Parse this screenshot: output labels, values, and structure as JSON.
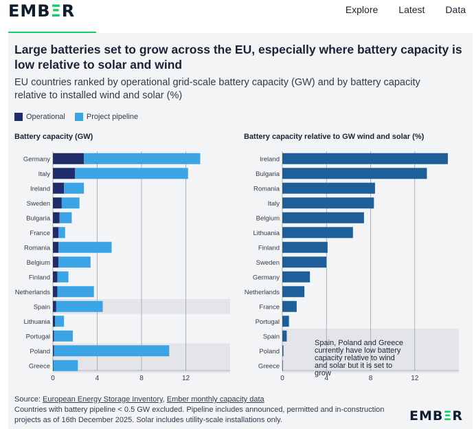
{
  "brand": {
    "logo": "EMBER"
  },
  "nav": [
    "Explore",
    "Latest",
    "Data"
  ],
  "title": "Large batteries set to grow across the EU, especially where battery capacity is low relative to solar and wind",
  "subtitle": "EU countries ranked by operational grid-scale battery capacity (GW) and by battery capacity relative to installed wind and solar (%)",
  "legend": [
    {
      "label": "Operational",
      "color": "#1f2d6b"
    },
    {
      "label": "Project pipeline",
      "color": "#3aa4e4"
    }
  ],
  "chart_data": [
    {
      "type": "bar",
      "orientation": "horizontal",
      "stacked": true,
      "title": "Battery capacity (GW)",
      "categories": [
        "Germany",
        "Italy",
        "Ireland",
        "Sweden",
        "Bulgaria",
        "France",
        "Romania",
        "Belgium",
        "Finland",
        "Netherlands",
        "Spain",
        "Lithuania",
        "Portugal",
        "Poland",
        "Greece"
      ],
      "series": [
        {
          "name": "Operational",
          "color": "#1f2d6b",
          "values": [
            2.8,
            2.0,
            1.0,
            0.8,
            0.6,
            0.5,
            0.5,
            0.5,
            0.4,
            0.4,
            0.3,
            0.2,
            0.1,
            0.1,
            0.05
          ]
        },
        {
          "name": "Project pipeline",
          "color": "#3aa4e4",
          "values": [
            10.5,
            10.2,
            1.8,
            1.6,
            1.1,
            0.6,
            4.8,
            2.9,
            1.0,
            3.3,
            4.2,
            0.8,
            1.7,
            10.4,
            2.2
          ]
        }
      ],
      "highlighted": [
        "Spain",
        "Poland",
        "Greece"
      ],
      "xlim": [
        0,
        16
      ],
      "xticks": [
        0,
        4,
        8,
        12
      ]
    },
    {
      "type": "bar",
      "orientation": "horizontal",
      "title": "Battery capacity relative to GW wind and solar (%)",
      "categories": [
        "Ireland",
        "Bulgaria",
        "Romania",
        "Italy",
        "Belgium",
        "Lithuania",
        "Finland",
        "Sweden",
        "Germany",
        "Netherlands",
        "France",
        "Portugal",
        "Spain",
        "Poland",
        "Greece"
      ],
      "series": [
        {
          "name": "Battery capacity relative to GW wind and solar",
          "color": "#1f5f99",
          "values": [
            15.0,
            13.1,
            8.4,
            8.3,
            7.4,
            6.4,
            4.1,
            4.0,
            2.5,
            2.0,
            1.3,
            0.6,
            0.4,
            0.1,
            0.05
          ]
        }
      ],
      "highlighted": [
        "Spain",
        "Poland",
        "Greece"
      ],
      "xlim": [
        0,
        16
      ],
      "xticks": [
        0,
        4,
        8,
        12
      ],
      "annotation": "Spain, Poland and Greece currently have low battery capacity relative to wind and solar but it is set to grow"
    }
  ],
  "footer": {
    "source_label": "Source:",
    "source_link_1": "European Energy Storage Inventory",
    "source_sep": ",",
    "source_link_2": "Ember monthly capacity data",
    "notes": "Countries with battery pipeline < 0.5 GW excluded. Pipeline includes announced, permitted and in-construction projects as of 16th December 2025. Solar includes utility-scale installations only."
  }
}
